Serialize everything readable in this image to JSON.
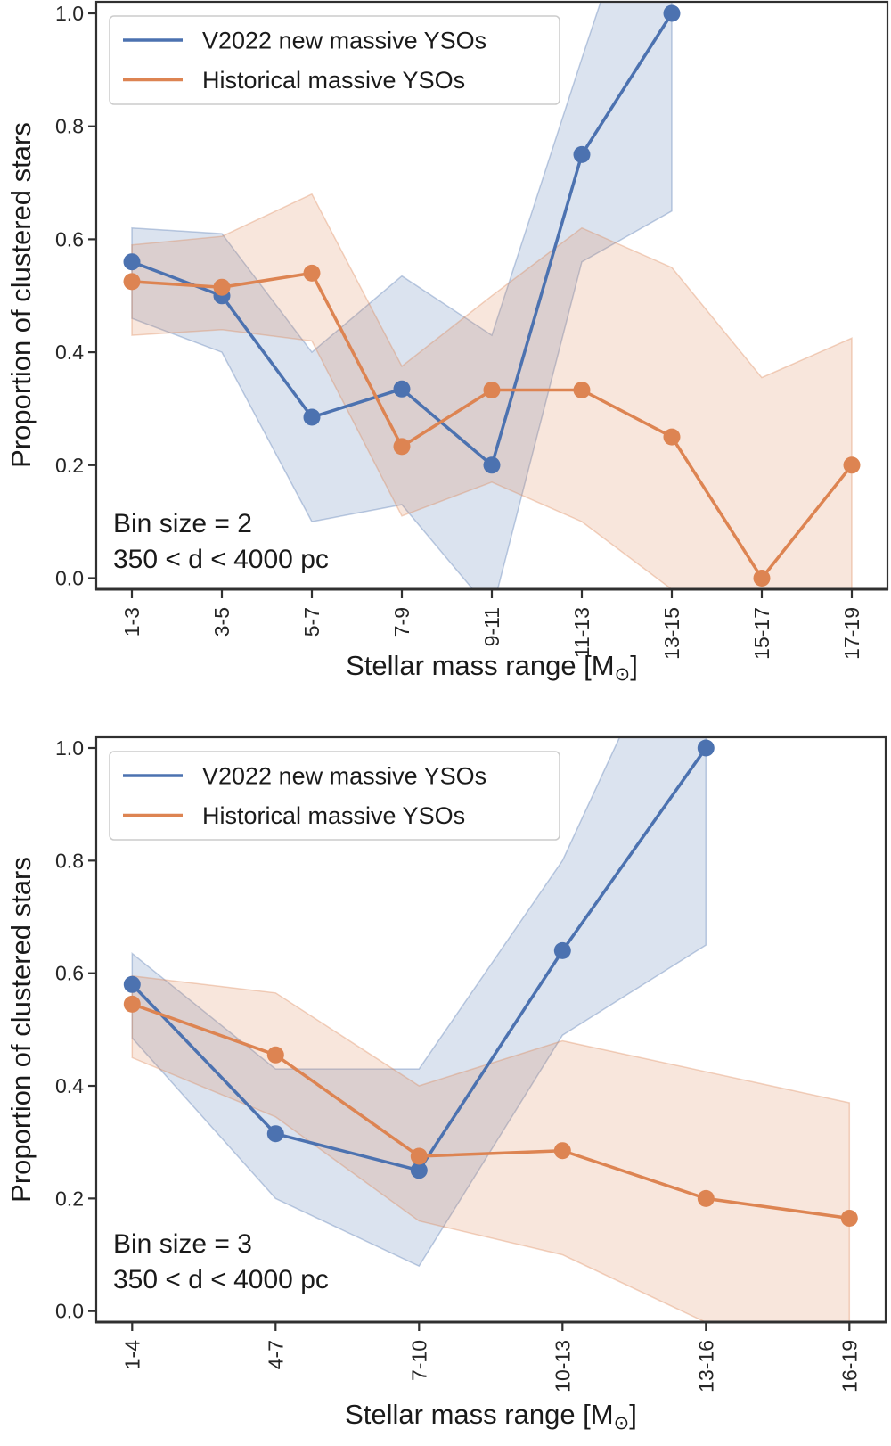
{
  "figure": {
    "background": "#ffffff",
    "description": "Two stacked line charts of proportion of clustered stars vs stellar mass range"
  },
  "colors": {
    "blue": "#4C72B0",
    "orange": "#DD8452",
    "band_fill_opacity": 0.2,
    "band_stroke_opacity": 0.35,
    "text": "#1a1a1a",
    "tick_text": "#262626",
    "spine": "#303030",
    "legend_border": "#cccccc",
    "legend_bg": "#ffffff"
  },
  "legend": {
    "items": [
      {
        "label": "V2022 new massive YSOs",
        "color_key": "blue"
      },
      {
        "label": "Historical massive YSOs",
        "color_key": "orange"
      }
    ]
  },
  "chart_data": [
    {
      "type": "line",
      "panel": "top",
      "title": "",
      "xlabel": "Stellar mass range [M⊙]",
      "ylabel": "Proportion of clustered stars",
      "categories": [
        "1-3",
        "3-5",
        "5-7",
        "7-9",
        "9-11",
        "11-13",
        "13-15",
        "15-17",
        "17-19"
      ],
      "yticks": [
        "0.0",
        "0.2",
        "0.4",
        "0.6",
        "0.8",
        "1.0"
      ],
      "ylim": [
        -0.02,
        1.02
      ],
      "grid": false,
      "legend_position": "upper left",
      "annotations": [
        "Bin size = 2",
        "350 < d < 4000 pc"
      ],
      "series": [
        {
          "name": "V2022 new massive YSOs",
          "color_key": "blue",
          "values": [
            0.56,
            0.5,
            0.285,
            0.335,
            0.2,
            0.75,
            1.0,
            null,
            null
          ],
          "band_upper": [
            0.62,
            0.61,
            0.4,
            0.535,
            0.43,
            0.92,
            1.4,
            null,
            null
          ],
          "band_lower": [
            0.46,
            0.4,
            0.1,
            0.13,
            -0.06,
            0.56,
            0.65,
            null,
            null
          ]
        },
        {
          "name": "Historical massive YSOs",
          "color_key": "orange",
          "values": [
            0.525,
            0.515,
            0.54,
            0.233,
            0.333,
            0.333,
            0.25,
            0.0,
            0.2
          ],
          "band_upper": [
            0.59,
            0.605,
            0.68,
            0.375,
            0.5,
            0.62,
            0.55,
            0.355,
            0.425
          ],
          "band_lower": [
            0.43,
            0.44,
            0.42,
            0.11,
            0.17,
            0.1,
            -0.02,
            -0.12,
            -0.06
          ]
        }
      ]
    },
    {
      "type": "line",
      "panel": "bottom",
      "title": "",
      "xlabel": "Stellar mass range [M⊙]",
      "ylabel": "Proportion of clustered stars",
      "categories": [
        "1-4",
        "4-7",
        "7-10",
        "10-13",
        "13-16",
        "16-19"
      ],
      "yticks": [
        "0.0",
        "0.2",
        "0.4",
        "0.6",
        "0.8",
        "1.0"
      ],
      "ylim": [
        -0.02,
        1.02
      ],
      "grid": false,
      "legend_position": "upper left",
      "annotations": [
        "Bin size = 3",
        "350 < d < 4000 pc"
      ],
      "series": [
        {
          "name": "V2022 new massive YSOs",
          "color_key": "blue",
          "values": [
            0.58,
            0.315,
            0.25,
            0.64,
            1.0,
            null
          ],
          "band_upper": [
            0.635,
            0.43,
            0.43,
            0.8,
            1.35,
            null
          ],
          "band_lower": [
            0.485,
            0.2,
            0.08,
            0.49,
            0.65,
            null
          ]
        },
        {
          "name": "Historical massive YSOs",
          "color_key": "orange",
          "values": [
            0.545,
            0.455,
            0.275,
            0.285,
            0.2,
            0.165
          ],
          "band_upper": [
            0.595,
            0.565,
            0.4,
            0.48,
            0.425,
            0.37
          ],
          "band_lower": [
            0.45,
            0.345,
            0.16,
            0.1,
            -0.02,
            -0.06
          ]
        }
      ]
    }
  ]
}
